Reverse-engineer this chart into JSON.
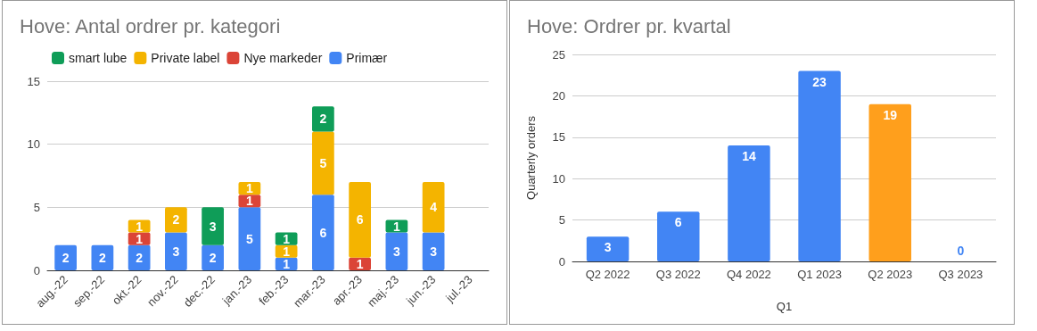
{
  "chart_data": [
    {
      "type": "bar",
      "title": "Hove: Antal ordrer pr. kategori",
      "stacked": true,
      "categories": [
        "aug.-22",
        "sep.-22",
        "okt.-22",
        "nov.-22",
        "dec.-22",
        "jan.-23",
        "feb.-23",
        "mar.-23",
        "apr.-23",
        "maj.-23",
        "jun.-23",
        "jul.-23"
      ],
      "series": [
        {
          "name": "Primær",
          "color": "#4285f4",
          "values": [
            2,
            2,
            2,
            3,
            2,
            5,
            1,
            6,
            null,
            3,
            3,
            null
          ]
        },
        {
          "name": "Nye markeder",
          "color": "#db4437",
          "values": [
            null,
            null,
            1,
            null,
            null,
            1,
            null,
            null,
            1,
            null,
            null,
            null
          ]
        },
        {
          "name": "Private label",
          "color": "#f4b400",
          "values": [
            null,
            null,
            1,
            2,
            null,
            1,
            1,
            5,
            6,
            null,
            4,
            null
          ]
        },
        {
          "name": "smart lube",
          "color": "#0f9d58",
          "values": [
            null,
            null,
            null,
            null,
            3,
            null,
            1,
            2,
            null,
            1,
            null,
            null
          ]
        }
      ],
      "ylim": [
        0,
        15
      ],
      "yticks": [
        0,
        5,
        10,
        15
      ],
      "grid": "y",
      "legend": "top",
      "data_labels": true
    },
    {
      "type": "bar",
      "title": "Hove: Ordrer pr. kvartal",
      "xlabel": "Q1",
      "ylabel": "Quarterly orders",
      "categories": [
        "Q2 2022",
        "Q3 2022",
        "Q4 2022",
        "Q1 2023",
        "Q2 2023",
        "Q3 2023"
      ],
      "values": [
        3,
        6,
        14,
        23,
        19,
        0
      ],
      "colors": [
        "#4285f4",
        "#4285f4",
        "#4285f4",
        "#4285f4",
        "#ff9f1c",
        "#4285f4"
      ],
      "ylim": [
        0,
        25
      ],
      "yticks": [
        0,
        5,
        10,
        15,
        20,
        25
      ],
      "grid": "y",
      "data_labels": true
    }
  ]
}
